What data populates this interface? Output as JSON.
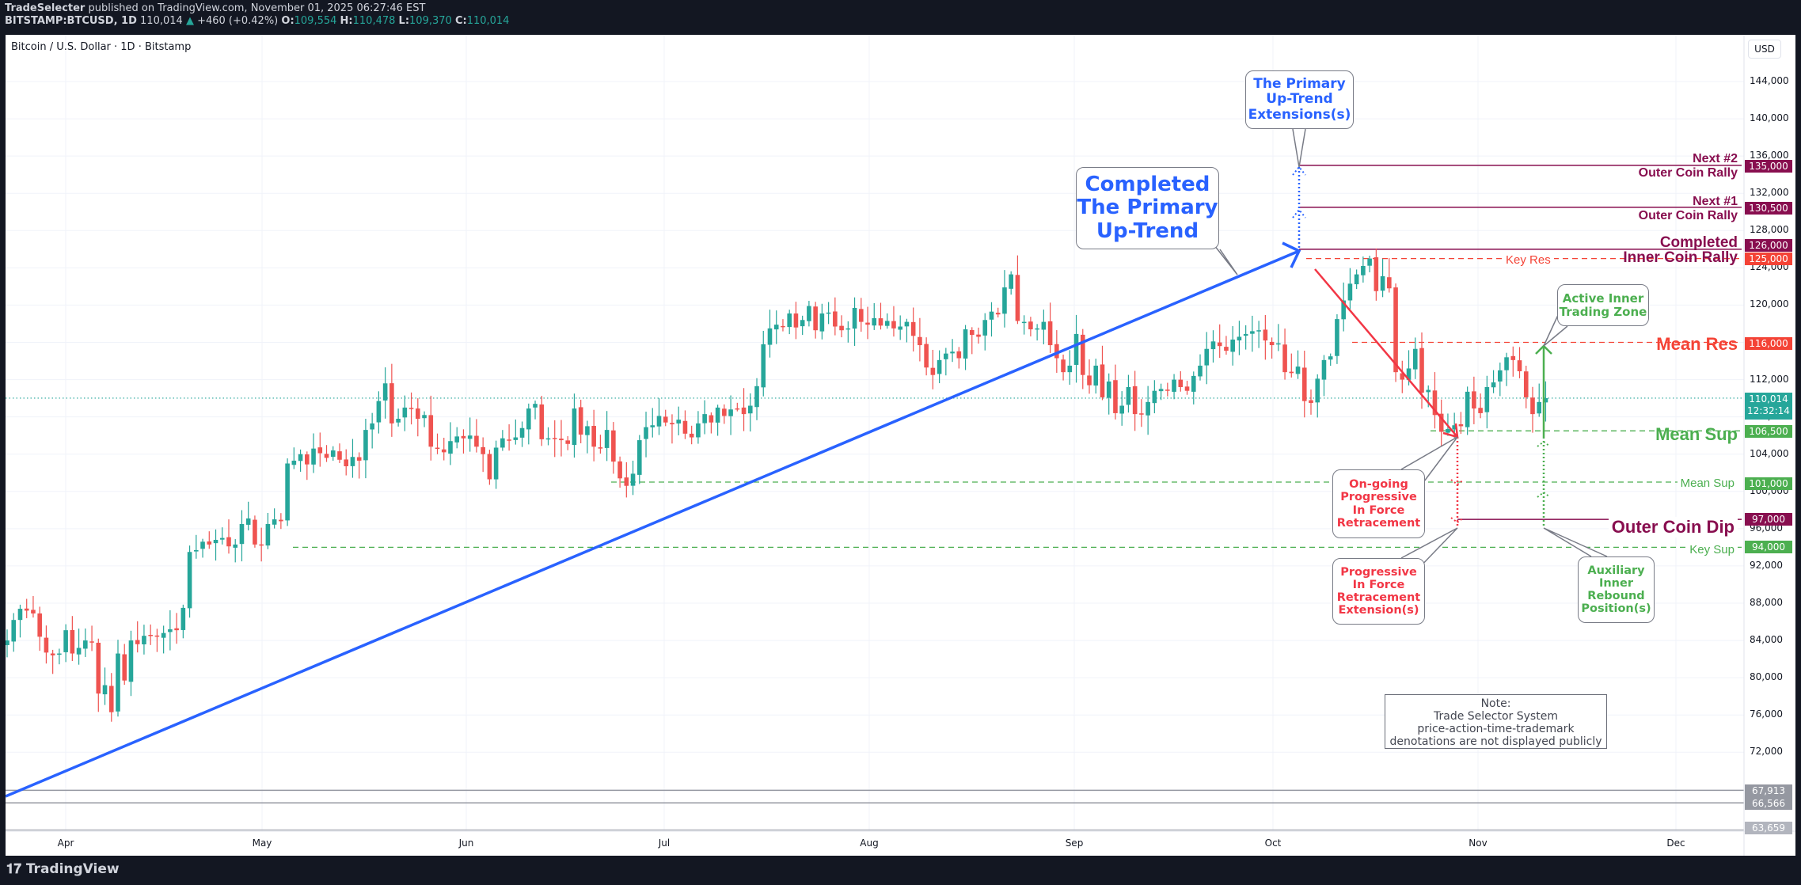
{
  "header": {
    "publisher": "TradeSelecter",
    "published_text": "published on TradingView.com, November 01, 2025 06:27:46 EST",
    "symbol": "BITSTAMP:BTCUSD, 1D",
    "last": "110,014",
    "change": "+460 (+0.42%)",
    "o_label": "O:",
    "o": "109,554",
    "h_label": "H:",
    "h": "110,478",
    "l_label": "L:",
    "l": "109,370",
    "c_label": "C:",
    "c": "110,014"
  },
  "chart_title": "Bitcoin / U.S. Dollar · 1D · Bitstamp",
  "currency": "USD",
  "footer_brand": "TradingView",
  "colors": {
    "up": "#26a69a",
    "down": "#ef5350",
    "blue": "#2962ff",
    "purple": "#880e4f",
    "red_level": "#f44336",
    "green_level": "#4caf50",
    "grey": "#9598a1"
  },
  "chart_data": {
    "type": "candlestick",
    "title": "Bitcoin / U.S. Dollar · 1D · Bitstamp",
    "xlabel": "",
    "ylabel": "USD",
    "ylim": [
      62000,
      147000
    ],
    "x_ticks": [
      "Apr",
      "May",
      "Jun",
      "Jul",
      "Aug",
      "Sep",
      "Oct",
      "Nov",
      "Dec"
    ],
    "y_ticks": [
      72000,
      76000,
      80000,
      84000,
      88000,
      92000,
      96000,
      100000,
      104000,
      108000,
      112000,
      116000,
      120000,
      124000,
      128000,
      132000,
      136000,
      140000,
      144000
    ],
    "grid": true,
    "start_date": "2025-03-22",
    "end_date": "2025-11-01",
    "last_price": 110014,
    "countdown": "12:32:14",
    "closes": [
      84000,
      86200,
      87400,
      87200,
      86900,
      84400,
      82700,
      82400,
      82600,
      85100,
      82600,
      83200,
      84000,
      83800,
      78300,
      79200,
      76300,
      82600,
      79700,
      84000,
      83600,
      84500,
      84600,
      84400,
      84800,
      85200,
      85100,
      87500,
      93500,
      93700,
      94600,
      94300,
      94800,
      95000,
      94100,
      94300,
      96500,
      97100,
      94300,
      94300,
      96500,
      97000,
      96800,
      103000,
      103300,
      104000,
      102900,
      104600,
      104100,
      103600,
      104400,
      103400,
      102700,
      103700,
      103300,
      106600,
      107300,
      109700,
      111600,
      107300,
      107800,
      109000,
      108900,
      107800,
      108200,
      104800,
      104600,
      104200,
      105400,
      105900,
      105700,
      106000,
      104800,
      104000,
      101300,
      104700,
      105700,
      105500,
      105800,
      106800,
      108900,
      109400,
      105600,
      105700,
      105700,
      105500,
      105100,
      108900,
      106100,
      107000,
      104800,
      104600,
      106600,
      103200,
      101400,
      100600,
      101900,
      105500,
      106900,
      107100,
      108100,
      107400,
      107200,
      107700,
      106200,
      105800,
      107300,
      108300,
      107400,
      109000,
      108100,
      108800,
      108900,
      108300,
      109200,
      111300,
      115800,
      117500,
      117900,
      117700,
      119100,
      117600,
      118400,
      119900,
      117300,
      119100,
      119200,
      117700,
      117300,
      117500,
      119700,
      118200,
      117900,
      118600,
      117800,
      118300,
      117500,
      117700,
      118200,
      116700,
      115700,
      113300,
      112500,
      114100,
      114800,
      115000,
      114300,
      117400,
      116800,
      116600,
      118400,
      119300,
      119000,
      121900,
      123300,
      118300,
      118200,
      117400,
      117500,
      118200,
      115700,
      114300,
      112800,
      113500,
      116900,
      112500,
      111400,
      113500,
      110100,
      111800,
      108400,
      109200,
      111200,
      108300,
      108300,
      109600,
      110800,
      111000,
      110800,
      112000,
      111200,
      110800,
      112400,
      113500,
      115300,
      116100,
      115600,
      115100,
      116300,
      116600,
      116900,
      117200,
      117300,
      116200,
      115700,
      115900,
      112800,
      112700,
      113400,
      109700,
      109500,
      112100,
      114100,
      114500,
      118500,
      120500,
      122300,
      123300,
      124200,
      125000,
      121500,
      123100,
      121800,
      112800,
      112000,
      113200,
      115300,
      110600,
      110900,
      108200,
      106400,
      106700,
      107100,
      107000,
      110700,
      108900,
      108400,
      111200,
      111700,
      113000,
      114400,
      114100,
      112900,
      110100,
      108300,
      109600,
      110014
    ],
    "levels": [
      {
        "name": "Next #2 Outer Coin Rally",
        "price": 135000,
        "style": "solid",
        "color": "#880e4f"
      },
      {
        "name": "Next #1 Outer Coin Rally",
        "price": 130500,
        "style": "solid",
        "color": "#880e4f"
      },
      {
        "name": "Completed Inner Coin Rally",
        "price": 126000,
        "style": "solid",
        "color": "#880e4f"
      },
      {
        "name": "Key Res",
        "price": 125000,
        "style": "dashed",
        "color": "#f44336"
      },
      {
        "name": "Mean Res",
        "price": 116000,
        "style": "dashed",
        "color": "#f44336"
      },
      {
        "name": "Mean Sup",
        "price": 106500,
        "style": "dashed",
        "color": "#4caf50"
      },
      {
        "name": "Mean Sup",
        "price": 101000,
        "style": "dashed",
        "color": "#4caf50"
      },
      {
        "name": "Outer Coin Dip",
        "price": 97000,
        "style": "solid",
        "color": "#880e4f"
      },
      {
        "name": "Key Sup",
        "price": 94000,
        "style": "dashed",
        "color": "#4caf50"
      },
      {
        "name": "",
        "price": 67913,
        "style": "solid",
        "color": "#9598a1"
      },
      {
        "name": "",
        "price": 66566,
        "style": "solid",
        "color": "#9598a1"
      },
      {
        "name": "",
        "price": 63659,
        "style": "solid",
        "color": "#b2b5be"
      }
    ]
  },
  "axis": {
    "ticks": [
      "144,000",
      "140,000",
      "136,000",
      "132,000",
      "128,000",
      "124,000",
      "120,000",
      "116,000",
      "112,000",
      "108,000",
      "104,000",
      "100,000",
      "96,000",
      "92,000",
      "88,000",
      "84,000",
      "80,000",
      "76,000",
      "72,000"
    ],
    "months": [
      "Apr",
      "May",
      "Jun",
      "Jul",
      "Aug",
      "Sep",
      "Oct",
      "Nov",
      "Dec"
    ],
    "tags": {
      "t135": "135,000",
      "t130": "130,500",
      "t126": "126,000",
      "t125": "125,000",
      "t116": "116,000",
      "last": "110,014",
      "countdown": "12:32:14",
      "t106": "106,500",
      "t101": "101,000",
      "t97": "97,000",
      "t94": "94,000",
      "g1": "67,913",
      "g2": "66,566",
      "g3": "63,659"
    }
  },
  "labels": {
    "next2_a": "Next #2",
    "next2_b": "Outer Coin Rally",
    "next1_a": "Next #1",
    "next1_b": "Outer Coin Rally",
    "completed_a": "Completed",
    "completed_b": "Inner Coin Rally",
    "key_res": "Key Res",
    "mean_res": "Mean Res",
    "mean_sup_big": "Mean Sup",
    "mean_sup_small": "Mean Sup",
    "outer_dip": "Outer Coin Dip",
    "key_sup": "Key Sup"
  },
  "callouts": {
    "completed_trend": "Completed\nThe Primary\nUp-Trend",
    "extensions": "The Primary\nUp-Trend\nExtensions(s)",
    "active_zone": "Active Inner\nTrading Zone",
    "ongoing": "On-going\nProgressive\nIn Force\nRetracement",
    "progressive_ext": "Progressive\nIn Force\nRetracement\nExtension(s)",
    "auxiliary": "Auxiliary\nInner\nRebound\nPosition(s)"
  },
  "note": {
    "line1": "Note:",
    "line2": "Trade Selector System",
    "line3": "price-action-time-trademark",
    "line4": "denotations are not displayed publicly"
  }
}
